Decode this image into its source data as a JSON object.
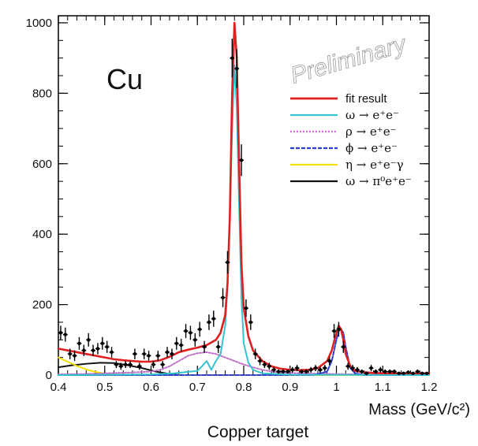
{
  "chart_data": {
    "type": "scatter",
    "target_label": "Cu",
    "watermark": "Preliminary",
    "xlabel": "Mass (GeV/c²)",
    "caption": "Copper target",
    "xlim": [
      0.4,
      1.2
    ],
    "ylim": [
      0,
      1020
    ],
    "x_ticks": [
      0.4,
      0.5,
      0.6,
      0.7,
      0.8,
      0.9,
      1.0,
      1.1,
      1.2
    ],
    "x_tick_labels": [
      "0.4",
      "0.5",
      "0.6",
      "0.7",
      "0.8",
      "0.9",
      "1",
      "1.1",
      "1.2"
    ],
    "y_ticks": [
      0,
      200,
      400,
      600,
      800,
      1000
    ],
    "y_tick_labels": [
      "0",
      "200",
      "400",
      "600",
      "800",
      "1000"
    ],
    "legend_position": "right",
    "legend": [
      {
        "label": "fit result",
        "color": "#e02020",
        "style": "solid"
      },
      {
        "label": "ω → e⁺e⁻",
        "color": "#35c4cf",
        "style": "solid"
      },
      {
        "label": "ρ → e⁺e⁻",
        "color": "#c070c8",
        "style": "dotted"
      },
      {
        "label": "ϕ → e⁺e⁻",
        "color": "#2a3fd0",
        "style": "dashed"
      },
      {
        "label": "η → e⁺e⁻γ",
        "color": "#f2e000",
        "style": "solid"
      },
      {
        "label": "ω → π⁰e⁺e⁻",
        "color": "#111111",
        "style": "solid"
      }
    ],
    "data_points": {
      "x": [
        0.405,
        0.415,
        0.425,
        0.435,
        0.445,
        0.455,
        0.465,
        0.475,
        0.485,
        0.495,
        0.505,
        0.515,
        0.525,
        0.535,
        0.545,
        0.555,
        0.565,
        0.575,
        0.585,
        0.595,
        0.605,
        0.615,
        0.625,
        0.635,
        0.645,
        0.655,
        0.665,
        0.675,
        0.685,
        0.695,
        0.705,
        0.715,
        0.725,
        0.735,
        0.745,
        0.755,
        0.765,
        0.775,
        0.785,
        0.795,
        0.805,
        0.815,
        0.825,
        0.835,
        0.845,
        0.855,
        0.865,
        0.875,
        0.885,
        0.895,
        0.905,
        0.915,
        0.925,
        0.935,
        0.945,
        0.955,
        0.965,
        0.975,
        0.985,
        0.995,
        1.005,
        1.015,
        1.025,
        1.035,
        1.045,
        1.055,
        1.065,
        1.075,
        1.085,
        1.095,
        1.105,
        1.115,
        1.125,
        1.135,
        1.145,
        1.155,
        1.165,
        1.175,
        1.185,
        1.195
      ],
      "y": [
        120,
        115,
        60,
        55,
        90,
        70,
        100,
        70,
        75,
        90,
        80,
        65,
        30,
        25,
        30,
        30,
        60,
        25,
        60,
        55,
        30,
        55,
        30,
        65,
        60,
        90,
        85,
        125,
        120,
        100,
        130,
        80,
        150,
        160,
        80,
        220,
        320,
        900,
        870,
        610,
        190,
        150,
        60,
        40,
        30,
        25,
        15,
        10,
        10,
        10,
        15,
        20,
        10,
        10,
        15,
        20,
        15,
        20,
        40,
        125,
        130,
        80,
        25,
        20,
        15,
        10,
        5,
        20,
        10,
        15,
        10,
        10,
        10,
        5,
        5,
        8,
        5,
        10,
        5,
        5
      ],
      "err": [
        20,
        20,
        15,
        15,
        18,
        16,
        19,
        16,
        16,
        18,
        17,
        15,
        10,
        10,
        10,
        10,
        15,
        10,
        15,
        14,
        10,
        14,
        10,
        15,
        15,
        18,
        18,
        20,
        20,
        19,
        21,
        17,
        22,
        23,
        17,
        27,
        32,
        55,
        55,
        45,
        25,
        22,
        15,
        12,
        10,
        10,
        8,
        6,
        6,
        6,
        8,
        9,
        6,
        6,
        8,
        9,
        8,
        9,
        12,
        20,
        21,
        17,
        10,
        9,
        8,
        6,
        4,
        9,
        6,
        8,
        6,
        6,
        6,
        4,
        4,
        5,
        4,
        6,
        4,
        4
      ]
    },
    "series": [
      {
        "name": "fit result",
        "x": [
          0.4,
          0.42,
          0.44,
          0.46,
          0.48,
          0.5,
          0.52,
          0.54,
          0.56,
          0.58,
          0.6,
          0.62,
          0.64,
          0.66,
          0.68,
          0.7,
          0.72,
          0.74,
          0.75,
          0.76,
          0.765,
          0.77,
          0.775,
          0.78,
          0.785,
          0.79,
          0.795,
          0.8,
          0.81,
          0.82,
          0.84,
          0.86,
          0.88,
          0.9,
          0.92,
          0.94,
          0.96,
          0.98,
          0.99,
          1.0,
          1.005,
          1.01,
          1.015,
          1.02,
          1.03,
          1.04,
          1.06,
          1.08,
          1.1,
          1.15,
          1.2
        ],
        "y": [
          75,
          70,
          65,
          60,
          55,
          50,
          45,
          42,
          40,
          38,
          38,
          42,
          52,
          65,
          72,
          78,
          85,
          100,
          120,
          170,
          260,
          450,
          800,
          1000,
          900,
          600,
          320,
          190,
          110,
          70,
          40,
          25,
          18,
          15,
          14,
          15,
          20,
          40,
          70,
          120,
          140,
          130,
          100,
          60,
          25,
          12,
          8,
          6,
          5,
          5,
          5
        ]
      },
      {
        "name": "ω → e⁺e⁻",
        "x": [
          0.4,
          0.6,
          0.65,
          0.7,
          0.71,
          0.72,
          0.73,
          0.74,
          0.75,
          0.76,
          0.765,
          0.77,
          0.775,
          0.78,
          0.785,
          0.79,
          0.795,
          0.8,
          0.81,
          0.82,
          0.84,
          0.9,
          1.2
        ],
        "y": [
          0,
          2,
          5,
          12,
          25,
          40,
          15,
          40,
          60,
          140,
          250,
          450,
          700,
          880,
          760,
          480,
          220,
          90,
          35,
          15,
          5,
          1,
          0
        ]
      },
      {
        "name": "ρ → e⁺e⁻",
        "x": [
          0.4,
          0.45,
          0.5,
          0.55,
          0.6,
          0.62,
          0.64,
          0.66,
          0.68,
          0.7,
          0.72,
          0.74,
          0.76,
          0.78,
          0.8,
          0.82,
          0.84,
          0.86,
          0.88,
          0.9,
          0.95,
          1.0,
          1.05,
          1.1,
          1.2
        ],
        "y": [
          2,
          3,
          5,
          7,
          10,
          15,
          25,
          40,
          55,
          62,
          65,
          60,
          50,
          40,
          30,
          22,
          15,
          10,
          8,
          6,
          4,
          3,
          2,
          2,
          1
        ]
      },
      {
        "name": "ϕ → e⁺e⁻",
        "x": [
          0.4,
          0.95,
          0.98,
          0.99,
          1.0,
          1.005,
          1.01,
          1.015,
          1.02,
          1.03,
          1.04,
          1.06,
          1.2
        ],
        "y": [
          0,
          0,
          10,
          40,
          100,
          125,
          130,
          120,
          80,
          20,
          5,
          0,
          0
        ]
      },
      {
        "name": "η → e⁺e⁻γ",
        "x": [
          0.4,
          0.42,
          0.44,
          0.46,
          0.48,
          0.5,
          0.52,
          0.54,
          0.56,
          1.2
        ],
        "y": [
          50,
          38,
          26,
          16,
          9,
          4,
          2,
          1,
          0,
          0
        ]
      },
      {
        "name": "ω → π⁰e⁺e⁻",
        "x": [
          0.4,
          0.43,
          0.46,
          0.49,
          0.52,
          0.55,
          0.58,
          0.61,
          0.64,
          0.66,
          1.2
        ],
        "y": [
          22,
          28,
          32,
          35,
          34,
          28,
          20,
          10,
          3,
          0,
          0
        ]
      }
    ]
  }
}
